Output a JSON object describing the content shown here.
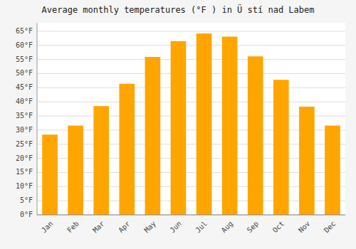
{
  "chart_data": {
    "type": "bar",
    "title": "Average monthly temperatures (°F ) in Ü stí nad Labem",
    "categories": [
      "Jan",
      "Feb",
      "Mar",
      "Apr",
      "May",
      "Jun",
      "Jul",
      "Aug",
      "Sep",
      "Oct",
      "Nov",
      "Dec"
    ],
    "values": [
      28.4,
      31.6,
      38.5,
      46.4,
      55.9,
      61.5,
      64.2,
      63.1,
      56.1,
      47.8,
      38.3,
      31.6
    ],
    "color": "#FFA500",
    "ylim": [
      0,
      68
    ],
    "yticks": [
      {
        "value": 0,
        "label": "0°F"
      },
      {
        "value": 5,
        "label": "5°F"
      },
      {
        "value": 10,
        "label": "10°F"
      },
      {
        "value": 15,
        "label": "15°F"
      },
      {
        "value": 20,
        "label": "20°F"
      },
      {
        "value": 25,
        "label": "25°F"
      },
      {
        "value": 30,
        "label": "30°F"
      },
      {
        "value": 35,
        "label": "35°F"
      },
      {
        "value": 40,
        "label": "40°F"
      },
      {
        "value": 45,
        "label": "45°F"
      },
      {
        "value": 50,
        "label": "50°F"
      },
      {
        "value": 55,
        "label": "55°F"
      },
      {
        "value": 60,
        "label": "60°F"
      },
      {
        "value": 65,
        "label": "65°F"
      }
    ],
    "grid": true
  }
}
